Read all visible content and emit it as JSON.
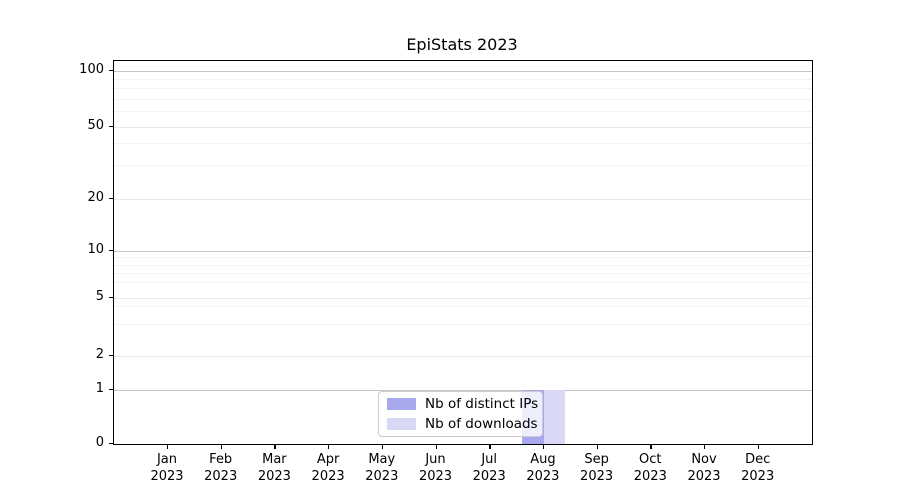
{
  "chart_data": {
    "type": "bar",
    "title": "EpiStats 2023",
    "categories": [
      "Jan 2023",
      "Feb 2023",
      "Mar 2023",
      "Apr 2023",
      "May 2023",
      "Jun 2023",
      "Jul 2023",
      "Aug 2023",
      "Sep 2023",
      "Oct 2023",
      "Nov 2023",
      "Dec 2023"
    ],
    "series": [
      {
        "name": "Nb of distinct IPs",
        "color": "#a8a8ee",
        "values": [
          0,
          0,
          0,
          0,
          0,
          0,
          0,
          1,
          0,
          0,
          0,
          0
        ]
      },
      {
        "name": "Nb of downloads",
        "color": "#d9d9f7",
        "values": [
          0,
          0,
          0,
          0,
          0,
          0,
          0,
          1,
          0,
          0,
          0,
          0
        ]
      }
    ],
    "xlabel": "",
    "ylabel": "",
    "y_axis": {
      "scale": "log-like",
      "tick_labels": [
        "0",
        "1",
        "2",
        "5",
        "10",
        "20",
        "50",
        "100"
      ],
      "ylim": [
        0,
        113
      ]
    },
    "grid": "horizontal major and minor gridlines",
    "legend_position": "inside bottom-center"
  },
  "colors": {
    "bar_distinct_ips": "#a8a8ee",
    "bar_downloads": "#d9d9f7",
    "grid_major": "#c6c6c6",
    "grid_mid": "#e9e9e9",
    "grid_minor": "#f3f3f3",
    "axis": "#000000",
    "legend_border": "#cccccc",
    "background": "#ffffff"
  }
}
